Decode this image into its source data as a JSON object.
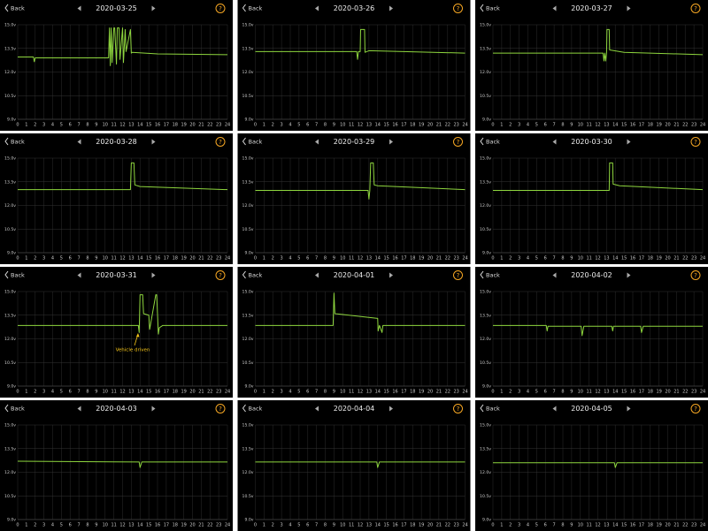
{
  "chart_data": [
    {
      "type": "line",
      "back": "Back",
      "title": "2020-03-25",
      "help": "?",
      "color": "#8ed63e",
      "grid": true,
      "xlim": [
        0,
        24
      ],
      "ylim": [
        9,
        15
      ],
      "xticks": [
        0,
        1,
        2,
        3,
        4,
        5,
        6,
        7,
        8,
        9,
        10,
        11,
        12,
        13,
        14,
        15,
        16,
        17,
        18,
        19,
        20,
        21,
        22,
        23,
        24
      ],
      "yticks": [
        {
          "value": 9,
          "label": "9.0v"
        },
        {
          "value": 10.5,
          "label": "10.5v"
        },
        {
          "value": 12,
          "label": "12.0v"
        },
        {
          "value": 13.5,
          "label": "13.5v"
        },
        {
          "value": 15,
          "label": "15.0v"
        }
      ],
      "x": [
        0,
        1.8,
        1.9,
        2.0,
        10.4,
        10.5,
        10.6,
        10.7,
        10.8,
        11.0,
        11.1,
        11.3,
        11.4,
        11.6,
        11.7,
        12.0,
        12.1,
        12.3,
        12.4,
        12.9,
        13.0,
        13.1,
        16,
        24
      ],
      "values": [
        12.95,
        12.95,
        12.65,
        12.9,
        12.9,
        14.8,
        12.4,
        14.8,
        12.6,
        14.8,
        14.8,
        12.5,
        14.8,
        14.8,
        12.8,
        14.8,
        12.6,
        14.7,
        13.3,
        14.7,
        13.2,
        13.25,
        13.15,
        13.1
      ]
    },
    {
      "type": "line",
      "back": "Back",
      "title": "2020-03-26",
      "help": "?",
      "color": "#8ed63e",
      "grid": true,
      "xlim": [
        0,
        24
      ],
      "ylim": [
        9,
        15
      ],
      "xticks": [
        0,
        1,
        2,
        3,
        4,
        5,
        6,
        7,
        8,
        9,
        10,
        11,
        12,
        13,
        14,
        15,
        16,
        17,
        18,
        19,
        20,
        21,
        22,
        23,
        24
      ],
      "yticks": [
        {
          "value": 9,
          "label": "9.0v"
        },
        {
          "value": 10.5,
          "label": "10.5v"
        },
        {
          "value": 12,
          "label": "12.0v"
        },
        {
          "value": 13.5,
          "label": "13.5v"
        },
        {
          "value": 15,
          "label": "15.0v"
        }
      ],
      "x": [
        0,
        11.6,
        11.7,
        11.8,
        12.0,
        12.05,
        12.5,
        12.55,
        13,
        24
      ],
      "values": [
        13.3,
        13.3,
        12.8,
        13.3,
        13.3,
        14.7,
        14.7,
        13.25,
        13.35,
        13.2
      ]
    },
    {
      "type": "line",
      "back": "Back",
      "title": "2020-03-27",
      "help": "?",
      "color": "#8ed63e",
      "grid": true,
      "xlim": [
        0,
        24
      ],
      "ylim": [
        9,
        15
      ],
      "xticks": [
        0,
        1,
        2,
        3,
        4,
        5,
        6,
        7,
        8,
        9,
        10,
        11,
        12,
        13,
        14,
        15,
        16,
        17,
        18,
        19,
        20,
        21,
        22,
        23,
        24
      ],
      "yticks": [
        {
          "value": 9,
          "label": "9.0v"
        },
        {
          "value": 10.5,
          "label": "10.5v"
        },
        {
          "value": 12,
          "label": "12.0v"
        },
        {
          "value": 13.5,
          "label": "13.5v"
        },
        {
          "value": 15,
          "label": "15.0v"
        }
      ],
      "x": [
        0,
        12.6,
        12.7,
        12.8,
        12.9,
        13.0,
        13.05,
        13.3,
        13.35,
        15,
        24
      ],
      "values": [
        13.2,
        13.2,
        12.7,
        13.2,
        12.7,
        13.2,
        14.7,
        14.7,
        13.4,
        13.25,
        13.1
      ]
    },
    {
      "type": "line",
      "back": "Back",
      "title": "2020-03-28",
      "help": "?",
      "color": "#8ed63e",
      "grid": true,
      "xlim": [
        0,
        24
      ],
      "ylim": [
        9,
        15
      ],
      "xticks": [
        0,
        1,
        2,
        3,
        4,
        5,
        6,
        7,
        8,
        9,
        10,
        11,
        12,
        13,
        14,
        15,
        16,
        17,
        18,
        19,
        20,
        21,
        22,
        23,
        24
      ],
      "yticks": [
        {
          "value": 9,
          "label": "9.0v"
        },
        {
          "value": 10.5,
          "label": "10.5v"
        },
        {
          "value": 12,
          "label": "12.0v"
        },
        {
          "value": 13.5,
          "label": "13.5v"
        },
        {
          "value": 15,
          "label": "15.0v"
        }
      ],
      "x": [
        0,
        12.9,
        13.0,
        13.3,
        13.4,
        14,
        24
      ],
      "values": [
        13.0,
        13.0,
        14.7,
        14.7,
        13.3,
        13.2,
        13.0
      ]
    },
    {
      "type": "line",
      "back": "Back",
      "title": "2020-03-29",
      "help": "?",
      "color": "#8ed63e",
      "grid": true,
      "xlim": [
        0,
        24
      ],
      "ylim": [
        9,
        15
      ],
      "xticks": [
        0,
        1,
        2,
        3,
        4,
        5,
        6,
        7,
        8,
        9,
        10,
        11,
        12,
        13,
        14,
        15,
        16,
        17,
        18,
        19,
        20,
        21,
        22,
        23,
        24
      ],
      "yticks": [
        {
          "value": 9,
          "label": "9.0v"
        },
        {
          "value": 10.5,
          "label": "10.5v"
        },
        {
          "value": 12,
          "label": "12.0v"
        },
        {
          "value": 13.5,
          "label": "13.5v"
        },
        {
          "value": 15,
          "label": "15.0v"
        }
      ],
      "x": [
        0,
        12.9,
        13.0,
        13.1,
        13.2,
        13.5,
        13.6,
        14,
        24
      ],
      "values": [
        12.95,
        12.95,
        12.4,
        12.95,
        14.7,
        14.7,
        13.3,
        13.25,
        13.0
      ]
    },
    {
      "type": "line",
      "back": "Back",
      "title": "2020-03-30",
      "help": "?",
      "color": "#8ed63e",
      "grid": true,
      "xlim": [
        0,
        24
      ],
      "ylim": [
        9,
        15
      ],
      "xticks": [
        0,
        1,
        2,
        3,
        4,
        5,
        6,
        7,
        8,
        9,
        10,
        11,
        12,
        13,
        14,
        15,
        16,
        17,
        18,
        19,
        20,
        21,
        22,
        23,
        24
      ],
      "yticks": [
        {
          "value": 9,
          "label": "9.0v"
        },
        {
          "value": 10.5,
          "label": "10.5v"
        },
        {
          "value": 12,
          "label": "12.0v"
        },
        {
          "value": 13.5,
          "label": "13.5v"
        },
        {
          "value": 15,
          "label": "15.0v"
        }
      ],
      "x": [
        0,
        13.3,
        13.35,
        13.7,
        13.75,
        14.5,
        24
      ],
      "values": [
        12.95,
        12.95,
        14.7,
        14.7,
        13.35,
        13.25,
        13.0
      ]
    },
    {
      "type": "line",
      "back": "Back",
      "title": "2020-03-31",
      "help": "?",
      "color": "#8ed63e",
      "grid": true,
      "xlim": [
        0,
        24
      ],
      "ylim": [
        9,
        15
      ],
      "xticks": [
        0,
        1,
        2,
        3,
        4,
        5,
        6,
        7,
        8,
        9,
        10,
        11,
        12,
        13,
        14,
        15,
        16,
        17,
        18,
        19,
        20,
        21,
        22,
        23,
        24
      ],
      "yticks": [
        {
          "value": 9,
          "label": "9.0v"
        },
        {
          "value": 10.5,
          "label": "10.5v"
        },
        {
          "value": 12,
          "label": "12.0v"
        },
        {
          "value": 13.5,
          "label": "13.5v"
        },
        {
          "value": 15,
          "label": "15.0v"
        }
      ],
      "annotation": "Vehicle driven",
      "x": [
        0,
        13.8,
        13.9,
        14.0,
        14.3,
        14.4,
        15.0,
        15.1,
        15.8,
        15.9,
        16.1,
        16.2,
        16.6,
        24
      ],
      "values": [
        12.85,
        12.85,
        12.4,
        14.8,
        14.8,
        13.6,
        13.5,
        12.6,
        14.8,
        14.8,
        12.3,
        12.7,
        12.85,
        12.85
      ]
    },
    {
      "type": "line",
      "back": "Back",
      "title": "2020-04-01",
      "help": "?",
      "color": "#8ed63e",
      "grid": true,
      "xlim": [
        0,
        24
      ],
      "ylim": [
        9,
        15
      ],
      "xticks": [
        0,
        1,
        2,
        3,
        4,
        5,
        6,
        7,
        8,
        9,
        10,
        11,
        12,
        13,
        14,
        15,
        16,
        17,
        18,
        19,
        20,
        21,
        22,
        23,
        24
      ],
      "yticks": [
        {
          "value": 9,
          "label": "9.0v"
        },
        {
          "value": 10.5,
          "label": "10.5v"
        },
        {
          "value": 12,
          "label": "12.0v"
        },
        {
          "value": 13.5,
          "label": "13.5v"
        },
        {
          "value": 15,
          "label": "15.0v"
        }
      ],
      "x": [
        0,
        8.9,
        9.0,
        9.1,
        14,
        14.05,
        14.2,
        14.5,
        14.6,
        14.8,
        24
      ],
      "values": [
        12.85,
        12.85,
        14.9,
        13.6,
        13.3,
        12.5,
        12.85,
        12.4,
        12.85,
        12.85,
        12.85
      ]
    },
    {
      "type": "line",
      "back": "Back",
      "title": "2020-04-02",
      "help": "?",
      "color": "#8ed63e",
      "grid": true,
      "xlim": [
        0,
        24
      ],
      "ylim": [
        9,
        15
      ],
      "xticks": [
        0,
        1,
        2,
        3,
        4,
        5,
        6,
        7,
        8,
        9,
        10,
        11,
        12,
        13,
        14,
        15,
        16,
        17,
        18,
        19,
        20,
        21,
        22,
        23,
        24
      ],
      "yticks": [
        {
          "value": 9,
          "label": "9.0v"
        },
        {
          "value": 10.5,
          "label": "10.5v"
        },
        {
          "value": 12,
          "label": "12.0v"
        },
        {
          "value": 13.5,
          "label": "13.5v"
        },
        {
          "value": 15,
          "label": "15.0v"
        }
      ],
      "x": [
        0,
        6.1,
        6.2,
        6.3,
        10.1,
        10.2,
        10.4,
        13.6,
        13.7,
        13.8,
        16.9,
        17.0,
        17.2,
        24
      ],
      "values": [
        12.85,
        12.85,
        12.5,
        12.8,
        12.8,
        12.2,
        12.8,
        12.8,
        12.5,
        12.8,
        12.8,
        12.4,
        12.8,
        12.8
      ]
    },
    {
      "type": "line",
      "back": "Back",
      "title": "2020-04-03",
      "help": "?",
      "color": "#8ed63e",
      "grid": true,
      "xlim": [
        0,
        24
      ],
      "ylim": [
        9,
        15
      ],
      "xticks": [
        0,
        1,
        2,
        3,
        4,
        5,
        6,
        7,
        8,
        9,
        10,
        11,
        12,
        13,
        14,
        15,
        16,
        17,
        18,
        19,
        20,
        21,
        22,
        23,
        24
      ],
      "yticks": [
        {
          "value": 9,
          "label": "9.0v"
        },
        {
          "value": 10.5,
          "label": "10.5v"
        },
        {
          "value": 12,
          "label": "12.0v"
        },
        {
          "value": 13.5,
          "label": "13.5v"
        },
        {
          "value": 15,
          "label": "15.0v"
        }
      ],
      "x": [
        0,
        13.9,
        14.0,
        14.2,
        24
      ],
      "values": [
        12.7,
        12.65,
        12.3,
        12.65,
        12.65
      ]
    },
    {
      "type": "line",
      "back": "Back",
      "title": "2020-04-04",
      "help": "?",
      "color": "#8ed63e",
      "grid": true,
      "xlim": [
        0,
        24
      ],
      "ylim": [
        9,
        15
      ],
      "xticks": [
        0,
        1,
        2,
        3,
        4,
        5,
        6,
        7,
        8,
        9,
        10,
        11,
        12,
        13,
        14,
        15,
        16,
        17,
        18,
        19,
        20,
        21,
        22,
        23,
        24
      ],
      "yticks": [
        {
          "value": 9,
          "label": "9.0v"
        },
        {
          "value": 10.5,
          "label": "10.5v"
        },
        {
          "value": 12,
          "label": "12.0v"
        },
        {
          "value": 13.5,
          "label": "13.5v"
        },
        {
          "value": 15,
          "label": "15.0v"
        }
      ],
      "x": [
        0,
        13.9,
        14.0,
        14.2,
        24
      ],
      "values": [
        12.65,
        12.65,
        12.3,
        12.65,
        12.65
      ]
    },
    {
      "type": "line",
      "back": "Back",
      "title": "2020-04-05",
      "help": "?",
      "color": "#8ed63e",
      "grid": true,
      "xlim": [
        0,
        24
      ],
      "ylim": [
        9,
        15
      ],
      "xticks": [
        0,
        1,
        2,
        3,
        4,
        5,
        6,
        7,
        8,
        9,
        10,
        11,
        12,
        13,
        14,
        15,
        16,
        17,
        18,
        19,
        20,
        21,
        22,
        23,
        24
      ],
      "yticks": [
        {
          "value": 9,
          "label": "9.0v"
        },
        {
          "value": 10.5,
          "label": "10.5v"
        },
        {
          "value": 12,
          "label": "12.0v"
        },
        {
          "value": 13.5,
          "label": "13.5v"
        },
        {
          "value": 15,
          "label": "15.0v"
        }
      ],
      "x": [
        0,
        13.9,
        14.0,
        14.2,
        24
      ],
      "values": [
        12.6,
        12.6,
        12.3,
        12.6,
        12.6
      ]
    }
  ]
}
